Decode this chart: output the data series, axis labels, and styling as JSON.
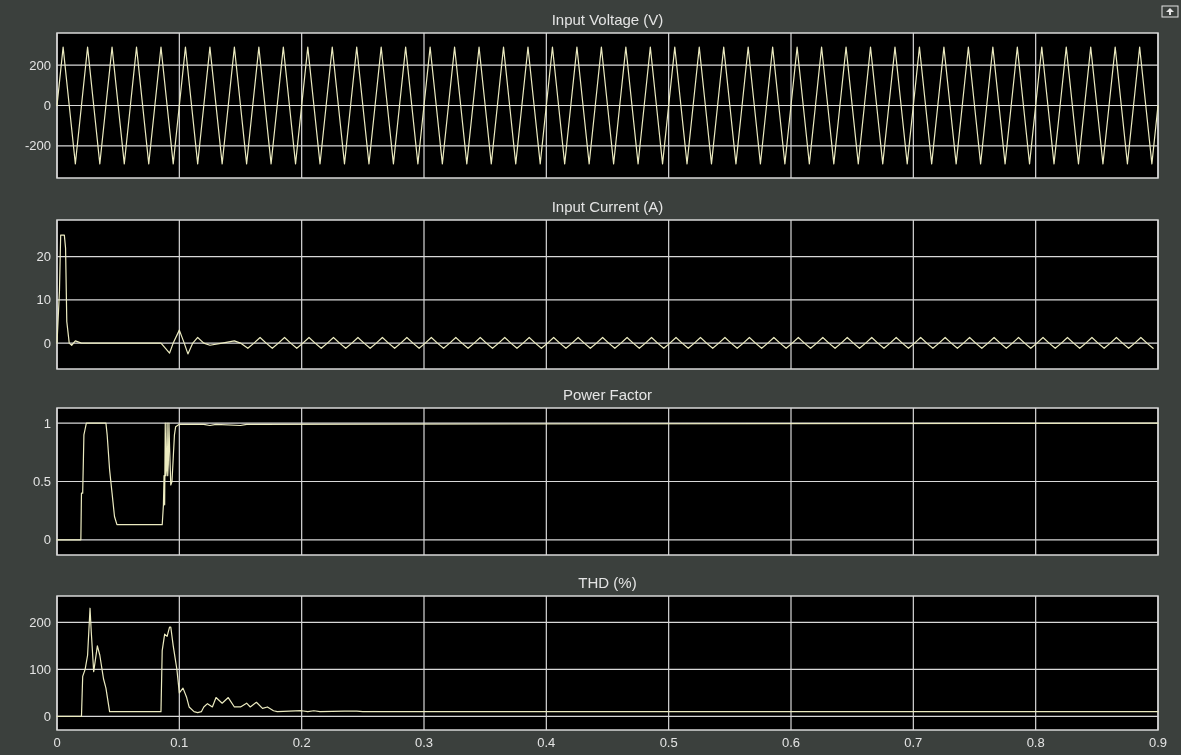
{
  "chart_data": [
    {
      "type": "line",
      "title": "Input Voltage (V)",
      "xlim": [
        0,
        0.9
      ],
      "xticks": [
        0,
        0.1,
        0.2,
        0.3,
        0.4,
        0.5,
        0.6,
        0.7,
        0.8,
        0.9
      ],
      "ylim": [
        -360,
        360
      ],
      "yticks": [
        -200,
        0,
        200
      ],
      "grid": true,
      "tick_labels": "y",
      "x": [
        0,
        0.005,
        0.01,
        0.015,
        0.02,
        0.025,
        0.03,
        0.035,
        0.04,
        0.045,
        0.05,
        0.055,
        0.06,
        0.065,
        0.07,
        0.075,
        0.08,
        0.085,
        0.09,
        0.095,
        0.1,
        0.105,
        0.11,
        0.115,
        0.12,
        0.125,
        0.13,
        0.135,
        0.14,
        0.145,
        0.15,
        0.155,
        0.16,
        0.165,
        0.17,
        0.175,
        0.18,
        0.185,
        0.19,
        0.195,
        0.2,
        0.205,
        0.21,
        0.215,
        0.22,
        0.225,
        0.23,
        0.235,
        0.24,
        0.245,
        0.25,
        0.255,
        0.26,
        0.265,
        0.27,
        0.275,
        0.28,
        0.285,
        0.29,
        0.295,
        0.3,
        0.305,
        0.31,
        0.315,
        0.32,
        0.325,
        0.33,
        0.335,
        0.34,
        0.345,
        0.35,
        0.355,
        0.36,
        0.365,
        0.37,
        0.375,
        0.38,
        0.385,
        0.39,
        0.395,
        0.4,
        0.405,
        0.41,
        0.415,
        0.42,
        0.425,
        0.43,
        0.435,
        0.44,
        0.445,
        0.45,
        0.455,
        0.46,
        0.465,
        0.47,
        0.475,
        0.48,
        0.485,
        0.49,
        0.495,
        0.5,
        0.505,
        0.51,
        0.515,
        0.52,
        0.525,
        0.53,
        0.535,
        0.54,
        0.545,
        0.55,
        0.555,
        0.56,
        0.565,
        0.57,
        0.575,
        0.58,
        0.585,
        0.59,
        0.595,
        0.6,
        0.605,
        0.61,
        0.615,
        0.62,
        0.625,
        0.63,
        0.635,
        0.64,
        0.645,
        0.65,
        0.655,
        0.66,
        0.665,
        0.67,
        0.675,
        0.68,
        0.685,
        0.69,
        0.695,
        0.7,
        0.705,
        0.71,
        0.715,
        0.72,
        0.725,
        0.73,
        0.735,
        0.74,
        0.745,
        0.75,
        0.755,
        0.76,
        0.765,
        0.77,
        0.775,
        0.78,
        0.785,
        0.79,
        0.795,
        0.8,
        0.805,
        0.81,
        0.815,
        0.82,
        0.825,
        0.83,
        0.835,
        0.84,
        0.845,
        0.85,
        0.855,
        0.86,
        0.865,
        0.87,
        0.875,
        0.88,
        0.885,
        0.89,
        0.895,
        0.9
      ],
      "series": [
        {
          "color": "#ecebc0",
          "values": [
            0,
            290,
            0,
            -290,
            0,
            290,
            0,
            -290,
            0,
            290,
            0,
            -290,
            0,
            290,
            0,
            -290,
            0,
            290,
            0,
            -290,
            0,
            290,
            0,
            -290,
            0,
            290,
            0,
            -290,
            0,
            290,
            0,
            -290,
            0,
            290,
            0,
            -290,
            0,
            290,
            0,
            -290,
            0,
            290,
            0,
            -290,
            0,
            290,
            0,
            -290,
            0,
            290,
            0,
            -290,
            0,
            290,
            0,
            -290,
            0,
            290,
            0,
            -290,
            0,
            290,
            0,
            -290,
            0,
            290,
            0,
            -290,
            0,
            290,
            0,
            -290,
            0,
            290,
            0,
            -290,
            0,
            290,
            0,
            -290,
            0,
            290,
            0,
            -290,
            0,
            290,
            0,
            -290,
            0,
            290,
            0,
            -290,
            0,
            290,
            0,
            -290,
            0,
            290,
            0,
            -290,
            0,
            290,
            0,
            -290,
            0,
            290,
            0,
            -290,
            0,
            290,
            0,
            -290,
            0,
            290,
            0,
            -290,
            0,
            290,
            0,
            -290,
            0,
            290,
            0,
            -290,
            0,
            290,
            0,
            -290,
            0,
            290,
            0,
            -290,
            0,
            290,
            0,
            -290,
            0,
            290,
            0,
            -290,
            0,
            290,
            0,
            -290,
            0,
            290,
            0,
            -290,
            0,
            290,
            0,
            -290,
            0,
            290,
            0,
            -290,
            0,
            290,
            0,
            -290,
            0,
            290,
            0,
            -290,
            0,
            290,
            0,
            -290,
            0,
            290,
            0,
            -290,
            0,
            290,
            0,
            -290,
            0,
            290,
            0,
            -290,
            0
          ]
        }
      ]
    },
    {
      "type": "line",
      "title": "Input Current (A)",
      "xlim": [
        0,
        0.9
      ],
      "xticks": [
        0,
        0.1,
        0.2,
        0.3,
        0.4,
        0.5,
        0.6,
        0.7,
        0.8,
        0.9
      ],
      "ylim": [
        -6,
        28.5
      ],
      "yticks": [
        0,
        10,
        20
      ],
      "grid": true,
      "tick_labels": "y",
      "x": [
        0,
        0.002,
        0.003,
        0.006,
        0.007,
        0.008,
        0.01,
        0.012,
        0.015,
        0.02,
        0.085,
        0.088,
        0.092,
        0.095,
        0.1,
        0.104,
        0.107,
        0.111,
        0.115,
        0.12,
        0.125,
        0.135,
        0.145,
        0.15,
        0.156,
        0.161,
        0.166,
        0.171,
        0.176,
        0.181,
        0.186,
        0.191,
        0.196,
        0.201,
        0.206,
        0.211,
        0.216,
        0.221,
        0.226,
        0.231,
        0.236,
        0.241,
        0.246,
        0.251,
        0.256,
        0.261,
        0.266,
        0.271,
        0.276,
        0.281,
        0.286,
        0.291,
        0.296,
        0.301,
        0.306,
        0.311,
        0.316,
        0.321,
        0.326,
        0.331,
        0.336,
        0.341,
        0.346,
        0.351,
        0.356,
        0.361,
        0.366,
        0.371,
        0.376,
        0.381,
        0.386,
        0.391,
        0.396,
        0.401,
        0.406,
        0.411,
        0.416,
        0.421,
        0.426,
        0.431,
        0.436,
        0.441,
        0.446,
        0.451,
        0.456,
        0.461,
        0.466,
        0.471,
        0.476,
        0.481,
        0.486,
        0.491,
        0.496,
        0.501,
        0.506,
        0.511,
        0.516,
        0.521,
        0.526,
        0.531,
        0.536,
        0.541,
        0.546,
        0.551,
        0.556,
        0.561,
        0.566,
        0.571,
        0.576,
        0.581,
        0.586,
        0.591,
        0.596,
        0.601,
        0.606,
        0.611,
        0.616,
        0.621,
        0.626,
        0.631,
        0.636,
        0.641,
        0.646,
        0.651,
        0.656,
        0.661,
        0.666,
        0.671,
        0.676,
        0.681,
        0.686,
        0.691,
        0.696,
        0.701,
        0.706,
        0.711,
        0.716,
        0.721,
        0.726,
        0.731,
        0.736,
        0.741,
        0.746,
        0.751,
        0.756,
        0.761,
        0.766,
        0.771,
        0.776,
        0.781,
        0.786,
        0.791,
        0.796,
        0.801,
        0.806,
        0.811,
        0.816,
        0.821,
        0.826,
        0.831,
        0.836,
        0.841,
        0.846,
        0.851,
        0.856,
        0.861,
        0.866,
        0.871,
        0.876,
        0.881,
        0.886,
        0.891,
        0.896
      ],
      "series": [
        {
          "color": "#ecebc0",
          "values": [
            0,
            12,
            25,
            25,
            22,
            5,
            0,
            -0.5,
            0.5,
            0,
            0,
            -1,
            -2.3,
            0,
            3,
            0,
            -2.5,
            0,
            1.3,
            0,
            -0.5,
            0,
            0.5,
            0,
            -1.2,
            0,
            1.3,
            0,
            -1.2,
            0,
            1.3,
            0,
            -1.2,
            0,
            1.3,
            0,
            -1.2,
            0,
            1.3,
            0,
            -1.2,
            0,
            1.3,
            0,
            -1.2,
            0,
            1.3,
            0,
            -1.2,
            0,
            1.3,
            0,
            -1.2,
            0,
            1.3,
            0,
            -1.2,
            0,
            1.3,
            0,
            -1.2,
            0,
            1.3,
            0,
            -1.2,
            0,
            1.3,
            0,
            -1.2,
            0,
            1.3,
            0,
            -1.2,
            0,
            1.3,
            0,
            -1.2,
            0,
            1.3,
            0,
            -1.2,
            0,
            1.3,
            0,
            -1.2,
            0,
            1.3,
            0,
            -1.2,
            0,
            1.3,
            0,
            -1.2,
            0,
            1.3,
            0,
            -1.2,
            0,
            1.3,
            0,
            -1.2,
            0,
            1.3,
            0,
            -1.2,
            0,
            1.3,
            0,
            -1.2,
            0,
            1.3,
            0,
            -1.2,
            0,
            1.3,
            0,
            -1.2,
            0,
            1.3,
            0,
            -1.2,
            0,
            1.3,
            0,
            -1.2,
            0,
            1.3,
            0,
            -1.2,
            0,
            1.3,
            0,
            -1.2,
            0,
            1.3,
            0,
            -1.2,
            0,
            1.3,
            0,
            -1.2,
            0,
            1.3,
            0,
            -1.2,
            0,
            1.3,
            0,
            -1.2,
            0,
            1.3,
            0,
            -1.2,
            0,
            1.3,
            0,
            -1.2,
            0,
            1.3,
            0,
            -1.2,
            0,
            1.3,
            0,
            -1.2,
            0,
            1.3,
            0,
            -1.2,
            0,
            1.3,
            0,
            -1.2
          ]
        }
      ]
    },
    {
      "type": "line",
      "title": "Power Factor",
      "xlim": [
        0,
        0.9
      ],
      "xticks": [
        0,
        0.1,
        0.2,
        0.3,
        0.4,
        0.5,
        0.6,
        0.7,
        0.8,
        0.9
      ],
      "ylim": [
        -0.13,
        1.13
      ],
      "yticks": [
        0,
        0.5,
        1
      ],
      "grid": true,
      "tick_labels": "y",
      "x": [
        0,
        0.0195,
        0.02,
        0.021,
        0.022,
        0.023,
        0.024,
        0.04,
        0.041,
        0.043,
        0.045,
        0.047,
        0.049,
        0.086,
        0.087,
        0.0875,
        0.088,
        0.0885,
        0.089,
        0.0895,
        0.09,
        0.0905,
        0.091,
        0.0915,
        0.092,
        0.093,
        0.094,
        0.095,
        0.096,
        0.097,
        0.1,
        0.12,
        0.125,
        0.13,
        0.15,
        0.155,
        0.9
      ],
      "series": [
        {
          "color": "#ecebc0",
          "values": [
            0,
            0,
            0.4,
            0.4,
            0.9,
            0.95,
            1,
            1,
            0.9,
            0.6,
            0.4,
            0.2,
            0.13,
            0.13,
            0.3,
            0.55,
            0.3,
            1,
            0.55,
            0.6,
            1,
            0.55,
            0.65,
            1,
            0.8,
            0.47,
            0.5,
            0.7,
            0.9,
            0.97,
            0.99,
            0.99,
            0.98,
            0.99,
            0.98,
            0.99,
            1
          ]
        }
      ]
    },
    {
      "type": "line",
      "title": "THD (%)",
      "xlim": [
        0,
        0.9
      ],
      "xticks": [
        0,
        0.1,
        0.2,
        0.3,
        0.4,
        0.5,
        0.6,
        0.7,
        0.8,
        0.9
      ],
      "ylim": [
        -29,
        256
      ],
      "yticks": [
        0,
        100,
        200
      ],
      "grid": true,
      "x": [
        0,
        0.02,
        0.021,
        0.023,
        0.025,
        0.026,
        0.027,
        0.028,
        0.03,
        0.033,
        0.035,
        0.038,
        0.04,
        0.043,
        0.085,
        0.086,
        0.088,
        0.09,
        0.092,
        0.093,
        0.095,
        0.098,
        0.1,
        0.103,
        0.106,
        0.108,
        0.112,
        0.115,
        0.118,
        0.12,
        0.123,
        0.127,
        0.13,
        0.135,
        0.14,
        0.145,
        0.15,
        0.155,
        0.158,
        0.163,
        0.168,
        0.172,
        0.177,
        0.18,
        0.2,
        0.205,
        0.21,
        0.215,
        0.235,
        0.245,
        0.25,
        0.9
      ],
      "series": [
        {
          "color": "#ecebc0",
          "values": [
            0,
            0,
            85,
            100,
            130,
            180,
            230,
            180,
            95,
            150,
            130,
            80,
            60,
            10,
            10,
            140,
            175,
            170,
            190,
            190,
            150,
            100,
            50,
            60,
            40,
            20,
            10,
            8,
            10,
            20,
            27,
            20,
            40,
            28,
            40,
            20,
            20,
            28,
            20,
            30,
            17,
            20,
            12,
            10,
            12,
            10,
            12,
            10,
            11,
            11,
            10,
            10
          ]
        }
      ]
    }
  ]
}
